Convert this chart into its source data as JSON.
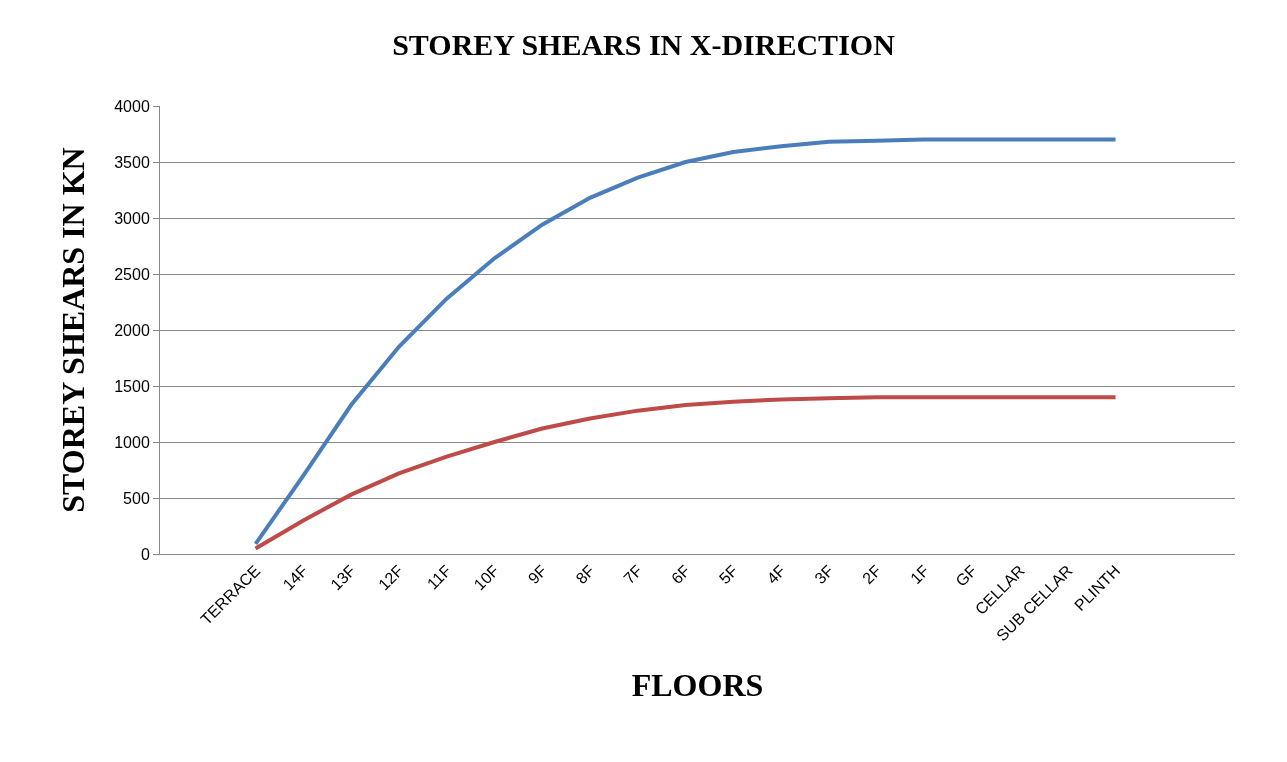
{
  "chart_data": {
    "type": "line",
    "title": "STOREY SHEARS IN X-DIRECTION",
    "xlabel": "FLOORS",
    "ylabel": "STOREY SHEARS IN KN",
    "categories": [
      "TERRACE",
      "14F",
      "13F",
      "12F",
      "11F",
      "10F",
      "9F",
      "8F",
      "7F",
      "6F",
      "5F",
      "4F",
      "3F",
      "2F",
      "1F",
      "GF",
      "CELLAR",
      "SUB CELLAR",
      "PLINTH"
    ],
    "series": [
      {
        "color": "#4a7ebb",
        "values": [
          90,
          700,
          1330,
          1850,
          2280,
          2640,
          2940,
          3180,
          3360,
          3500,
          3590,
          3640,
          3680,
          3690,
          3700,
          3700,
          3700,
          3700,
          3700
        ]
      },
      {
        "color": "#be4b48",
        "values": [
          50,
          300,
          530,
          720,
          870,
          1000,
          1120,
          1210,
          1280,
          1330,
          1360,
          1380,
          1390,
          1400,
          1400,
          1400,
          1400,
          1400,
          1400
        ]
      }
    ],
    "ylim": [
      0,
      4000
    ],
    "yticks": [
      0,
      500,
      1000,
      1500,
      2000,
      2500,
      3000,
      3500,
      4000
    ],
    "grid": "y",
    "marker": "none",
    "line_style": "solid"
  }
}
